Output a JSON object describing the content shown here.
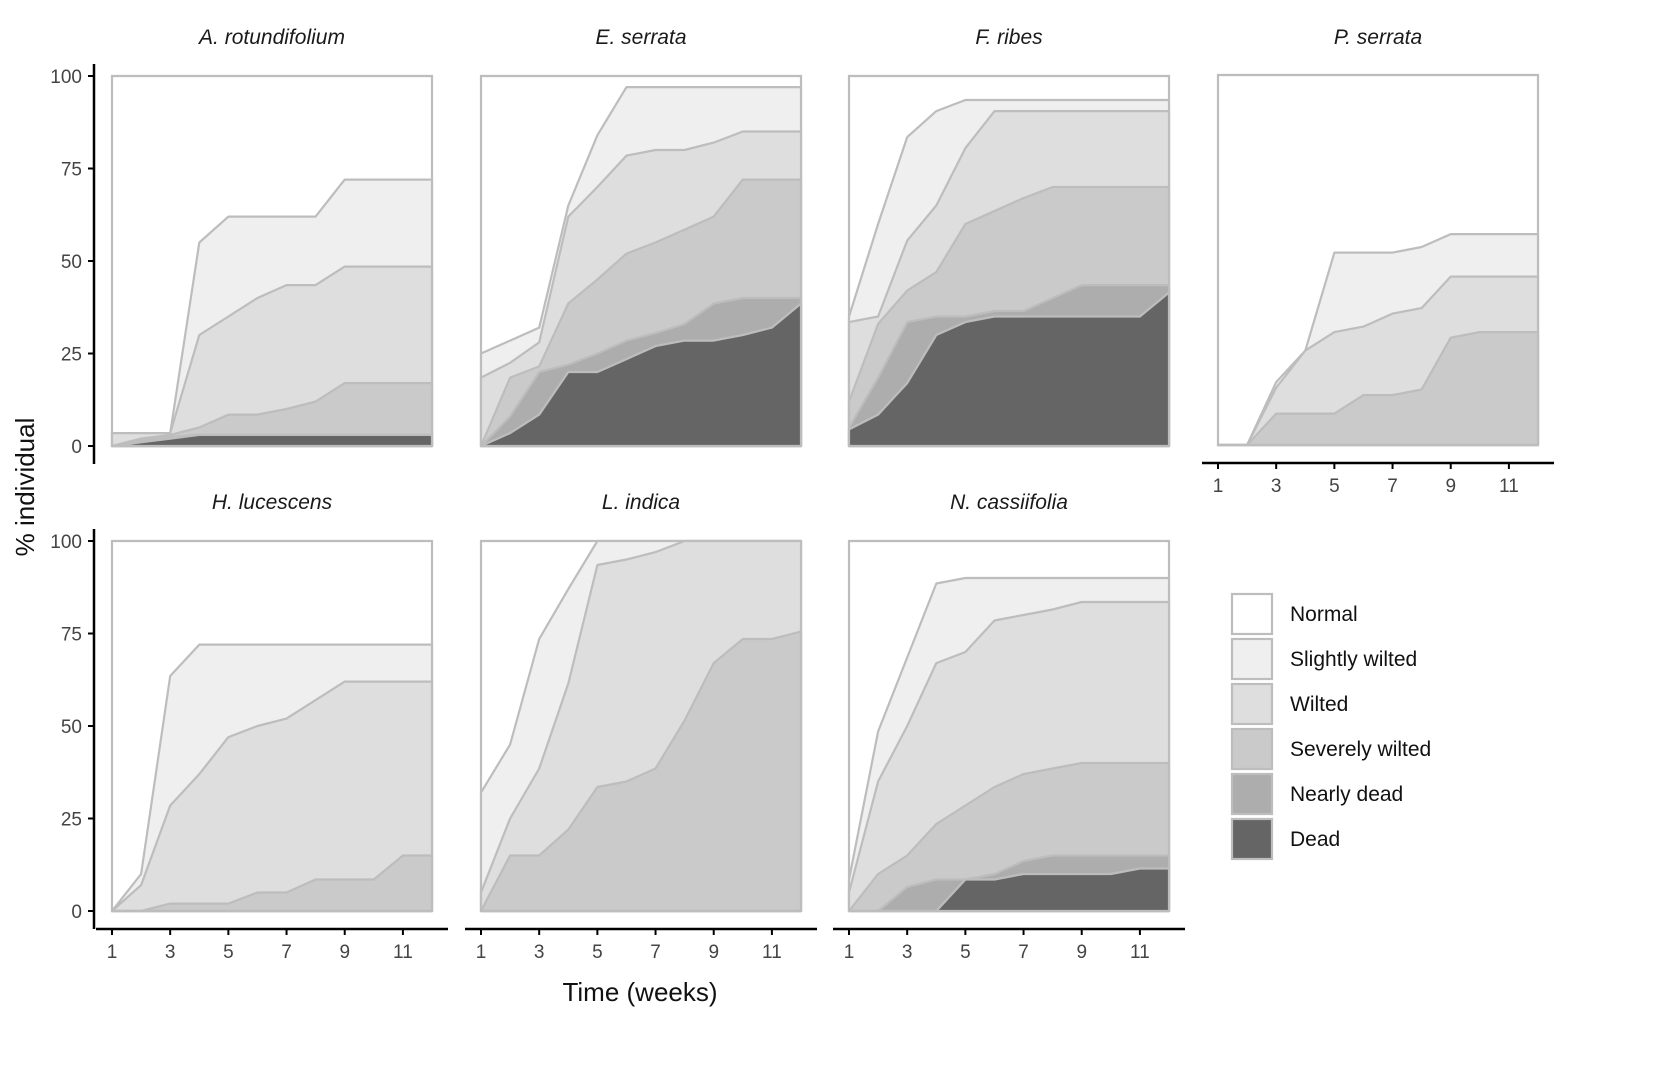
{
  "chart_data": {
    "type": "area",
    "stacked": true,
    "title": "",
    "xlabel": "Time (weeks)",
    "ylabel": "% individual",
    "ylim": [
      0,
      100
    ],
    "xlim": [
      1,
      12
    ],
    "x": [
      1,
      2,
      3,
      4,
      5,
      6,
      7,
      8,
      9,
      10,
      11,
      12
    ],
    "xticks": [
      1,
      3,
      5,
      7,
      9,
      11
    ],
    "yticks": [
      0,
      25,
      50,
      75,
      100
    ],
    "grid": false,
    "legend_position": "right",
    "categories_order_bottom_to_top": [
      "Dead",
      "Nearly dead",
      "Severely wilted",
      "Wilted",
      "Slightly wilted",
      "Normal"
    ],
    "legend": [
      {
        "label": "Normal",
        "color": "#ffffff"
      },
      {
        "label": "Slightly wilted",
        "color": "#efefef"
      },
      {
        "label": "Wilted",
        "color": "#dedede"
      },
      {
        "label": "Severely wilted",
        "color": "#cacaca"
      },
      {
        "label": "Nearly dead",
        "color": "#adadad"
      },
      {
        "label": "Dead",
        "color": "#656565"
      }
    ],
    "boundary_note": "cumulative upper boundary (%) of each stacked category; Normal fills to 100",
    "panels": [
      {
        "species": "A. rotundifolium",
        "cumulative": {
          "Dead": [
            0,
            1,
            2,
            3,
            3,
            3,
            3,
            3,
            3,
            3,
            3,
            3
          ],
          "Nearly dead": [
            0,
            1.5,
            2.5,
            3,
            3,
            3,
            3,
            3,
            3,
            3,
            3,
            3
          ],
          "Severely wilted": [
            0,
            2,
            3,
            5,
            8.5,
            8.5,
            10,
            12,
            17,
            17,
            17,
            17
          ],
          "Wilted": [
            3.5,
            3.5,
            3.5,
            30,
            35,
            40,
            43.5,
            43.5,
            48.5,
            48.5,
            48.5,
            48.5
          ],
          "Slightly wilted": [
            3.5,
            3.5,
            3.5,
            55,
            62,
            62,
            62,
            62,
            72,
            72,
            72,
            72
          ]
        }
      },
      {
        "species": "E. serrata",
        "cumulative": {
          "Dead": [
            0,
            3.5,
            8.5,
            20,
            20,
            23.5,
            27,
            28.5,
            28.5,
            30,
            32,
            38.5
          ],
          "Nearly dead": [
            0,
            8,
            20,
            22,
            25,
            28.5,
            30.5,
            33,
            38.5,
            40,
            40,
            40
          ],
          "Severely wilted": [
            0,
            18.5,
            21.5,
            38.5,
            45,
            52,
            55,
            58.5,
            62,
            72,
            72,
            72
          ],
          "Wilted": [
            18.5,
            22.5,
            28,
            62,
            70,
            78.5,
            80,
            80,
            82,
            85,
            85,
            85
          ],
          "Slightly wilted": [
            25,
            28.5,
            32,
            65,
            84,
            97,
            97,
            97,
            97,
            97,
            97,
            97
          ]
        }
      },
      {
        "species": "F. ribes",
        "cumulative": {
          "Dead": [
            4.5,
            8.5,
            17,
            30,
            33.5,
            35,
            35,
            35,
            35,
            35,
            35,
            41.5
          ],
          "Nearly dead": [
            5,
            18.5,
            33.5,
            35,
            35,
            36.5,
            36.5,
            40,
            43.5,
            43.5,
            43.5,
            43.5
          ],
          "Severely wilted": [
            12,
            33,
            42,
            47,
            60,
            63.5,
            67,
            70,
            70,
            70,
            70,
            70
          ],
          "Wilted": [
            33.5,
            35,
            55.5,
            65,
            80.5,
            90.5,
            90.5,
            90.5,
            90.5,
            90.5,
            90.5,
            90.5
          ],
          "Slightly wilted": [
            35,
            60,
            83.5,
            90.5,
            93.5,
            93.5,
            93.5,
            93.5,
            93.5,
            93.5,
            93.5,
            93.5
          ]
        }
      },
      {
        "species": "P. serrata",
        "cumulative": {
          "Dead": [
            0,
            0,
            0,
            0,
            0,
            0,
            0,
            0,
            0,
            0,
            0,
            0
          ],
          "Nearly dead": [
            0,
            0,
            0,
            0,
            0,
            0,
            0,
            0,
            0,
            0,
            0,
            0
          ],
          "Severely wilted": [
            0,
            0,
            8.5,
            8.5,
            8.5,
            13.5,
            13.5,
            15,
            29,
            30.5,
            30.5,
            30.5
          ],
          "Wilted": [
            0,
            0,
            15.5,
            25.5,
            30.5,
            32,
            35.5,
            37,
            45.5,
            45.5,
            45.5,
            45.5
          ],
          "Slightly wilted": [
            0,
            0,
            17,
            25.5,
            52,
            52,
            52,
            53.5,
            57,
            57,
            57,
            57
          ]
        }
      },
      {
        "species": "H. lucescens",
        "cumulative": {
          "Dead": [
            0,
            0,
            0,
            0,
            0,
            0,
            0,
            0,
            0,
            0,
            0,
            0
          ],
          "Nearly dead": [
            0,
            0,
            0,
            0,
            0,
            0,
            0,
            0,
            0,
            0,
            0,
            0
          ],
          "Severely wilted": [
            0,
            0,
            2,
            2,
            2,
            5,
            5,
            8.5,
            8.5,
            8.5,
            15,
            15
          ],
          "Wilted": [
            0,
            7,
            28.5,
            37,
            47,
            50,
            52,
            57,
            62,
            62,
            62,
            62
          ],
          "Slightly wilted": [
            0,
            10,
            63.5,
            72,
            72,
            72,
            72,
            72,
            72,
            72,
            72,
            72
          ]
        }
      },
      {
        "species": "L. indica",
        "cumulative": {
          "Dead": [
            0,
            0,
            0,
            0,
            0,
            0,
            0,
            0,
            0,
            0,
            0,
            0
          ],
          "Nearly dead": [
            0,
            0,
            0,
            0,
            0,
            0,
            0,
            0,
            0,
            0,
            0,
            0
          ],
          "Severely wilted": [
            0,
            15,
            15,
            22,
            33.5,
            35,
            38.5,
            51.5,
            67,
            73.5,
            73.5,
            75.5
          ],
          "Wilted": [
            5,
            25,
            38.5,
            61.5,
            93.5,
            95,
            97,
            100,
            100,
            100,
            100,
            100
          ],
          "Slightly wilted": [
            32,
            45,
            73.5,
            87,
            100,
            100,
            100,
            100,
            100,
            100,
            100,
            100
          ]
        }
      },
      {
        "species": "N. cassiifolia",
        "cumulative": {
          "Dead": [
            0,
            0,
            0,
            0,
            8.5,
            8.5,
            10,
            10,
            10,
            10,
            11.5,
            11.5
          ],
          "Nearly dead": [
            0,
            0,
            6.5,
            8.5,
            8.5,
            10,
            13.5,
            15,
            15,
            15,
            15,
            15
          ],
          "Severely wilted": [
            0,
            10,
            15,
            23.5,
            28.5,
            33.5,
            37,
            38.5,
            40,
            40,
            40,
            40
          ],
          "Wilted": [
            5,
            35,
            50,
            67,
            70,
            78.5,
            80,
            81.5,
            83.5,
            83.5,
            83.5,
            83.5
          ],
          "Slightly wilted": [
            8.5,
            48.5,
            68.5,
            88.5,
            90,
            90,
            90,
            90,
            90,
            90,
            90,
            90
          ]
        }
      }
    ]
  }
}
